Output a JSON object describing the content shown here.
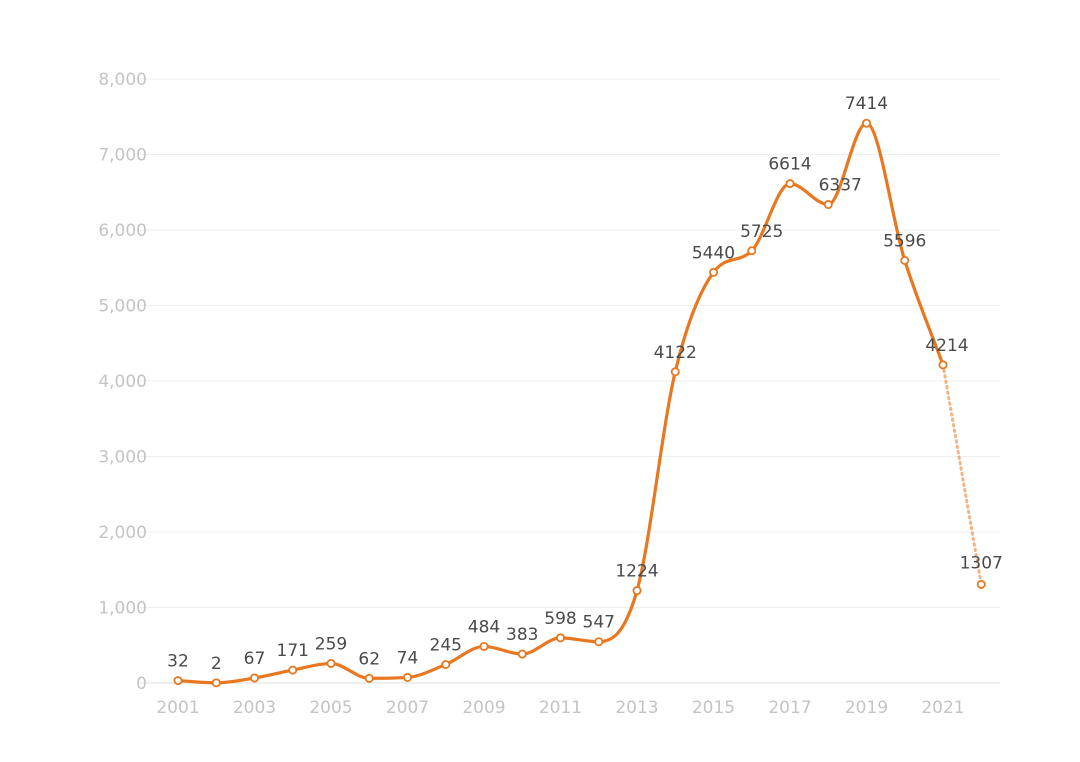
{
  "chart_data": {
    "type": "line",
    "title": "",
    "xlabel": "",
    "ylabel": "",
    "ylim": [
      0,
      8000
    ],
    "yticks": [
      0,
      1000,
      2000,
      3000,
      4000,
      5000,
      6000,
      7000,
      8000
    ],
    "ytick_labels": [
      "0",
      "1,000",
      "2,000",
      "3,000",
      "4,000",
      "5,000",
      "6,000",
      "7,000",
      "8,000"
    ],
    "x": [
      2001,
      2002,
      2003,
      2004,
      2005,
      2006,
      2007,
      2008,
      2009,
      2010,
      2011,
      2012,
      2013,
      2014,
      2015,
      2016,
      2017,
      2018,
      2019,
      2020,
      2021,
      2022
    ],
    "xtick_labels": [
      "2001",
      "2003",
      "2005",
      "2007",
      "2009",
      "2011",
      "2013",
      "2015",
      "2017",
      "2019",
      "2021"
    ],
    "xtick_values": [
      2001,
      2003,
      2005,
      2007,
      2009,
      2011,
      2013,
      2015,
      2017,
      2019,
      2021
    ],
    "series": [
      {
        "values": [
          32,
          2,
          67,
          171,
          259,
          62,
          74,
          245,
          484,
          383,
          598,
          547,
          1224,
          4122,
          5440,
          5725,
          6614,
          6337,
          7414,
          5596,
          4214,
          1307
        ],
        "labels": [
          "32",
          "2",
          "67",
          "171",
          "259",
          "62",
          "74",
          "245",
          "484",
          "383",
          "598",
          "547",
          "1224",
          "4122",
          "5440",
          "5725",
          "6614",
          "6337",
          "7414",
          "5596",
          "4214",
          "1307"
        ],
        "color": "#e8771f",
        "projected_from": 2021
      }
    ],
    "grid": true,
    "legend": "none"
  }
}
